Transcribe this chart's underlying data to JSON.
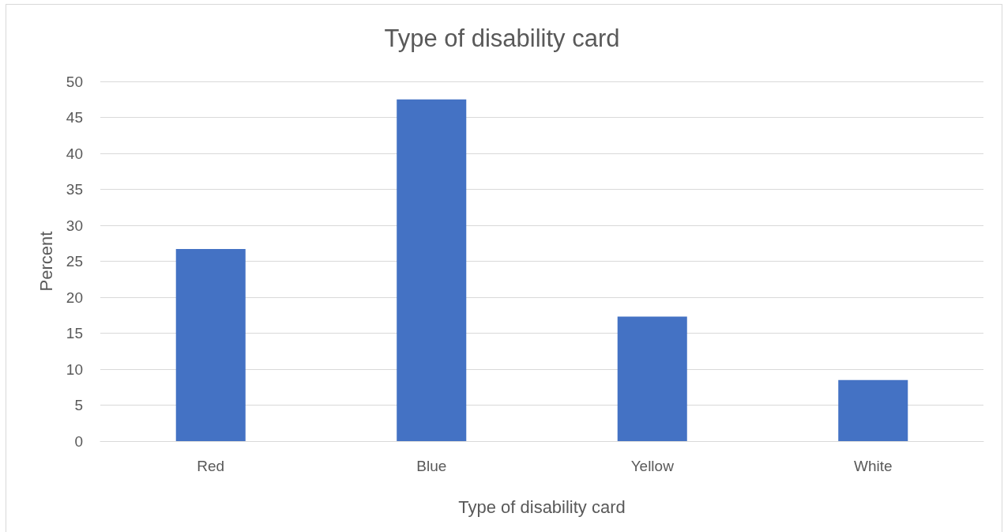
{
  "chart_data": {
    "type": "bar",
    "title": "Type of disability card",
    "xlabel": "Type of disability card",
    "ylabel": "Percent",
    "categories": [
      "Red",
      "Blue",
      "Yellow",
      "White"
    ],
    "values": [
      26.7,
      47.5,
      17.3,
      8.5
    ],
    "color": "#4472c4",
    "ylim": [
      0,
      50
    ],
    "yticks": [
      0,
      5,
      10,
      15,
      20,
      25,
      30,
      35,
      40,
      45,
      50
    ],
    "grid": "y"
  }
}
